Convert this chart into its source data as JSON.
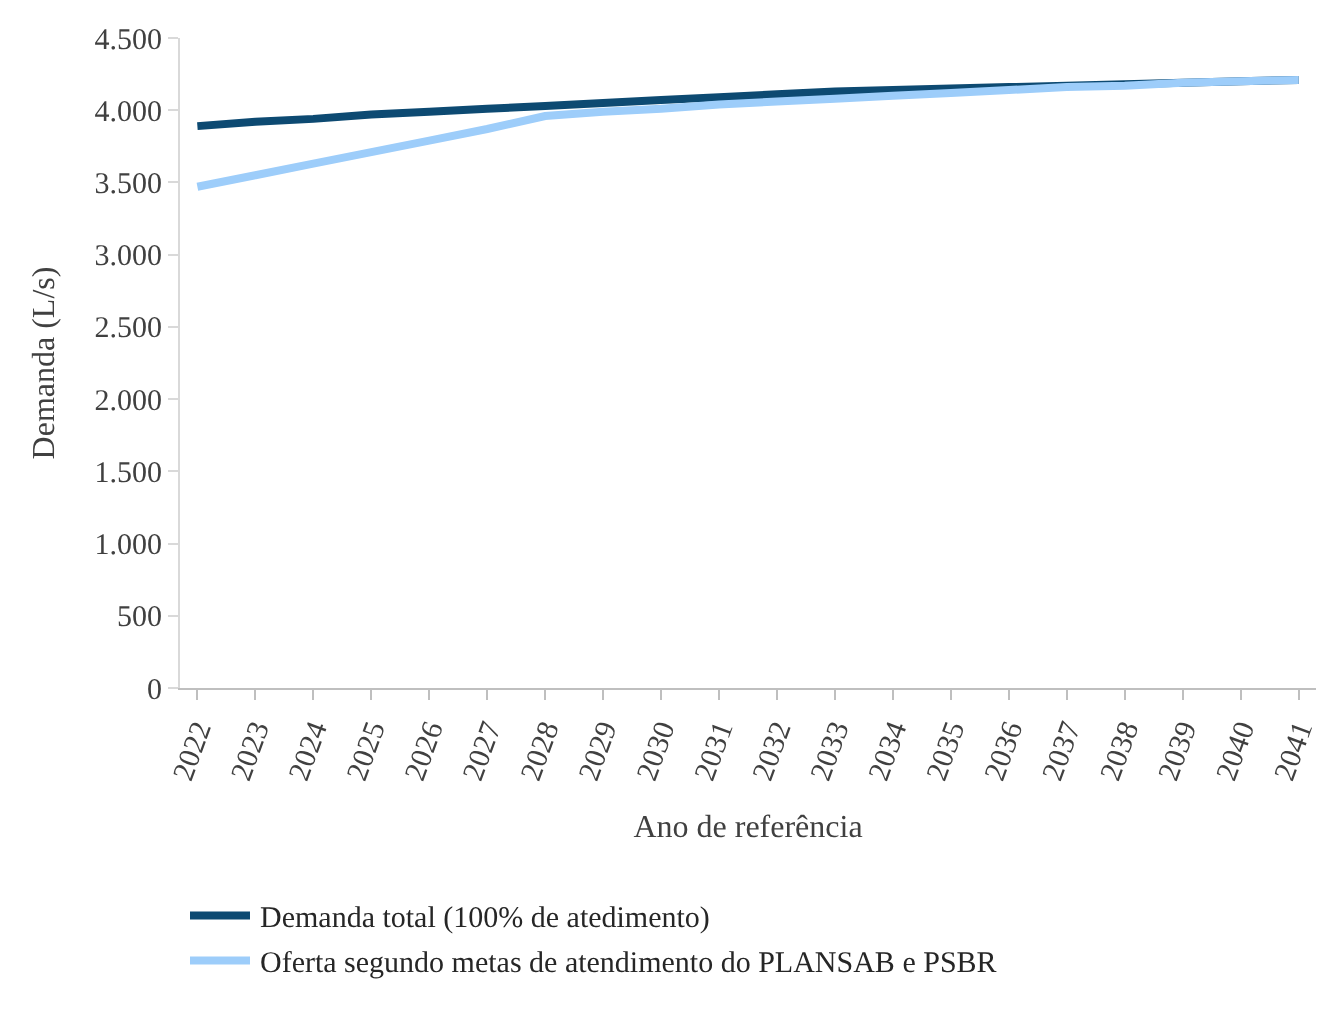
{
  "chart_data": {
    "type": "line",
    "xlabel": "Ano de referência",
    "ylabel": "Demanda (L/s)",
    "categories": [
      "2022",
      "2023",
      "2024",
      "2025",
      "2026",
      "2027",
      "2028",
      "2029",
      "2030",
      "2031",
      "2032",
      "2033",
      "2034",
      "2035",
      "2036",
      "2037",
      "2038",
      "2039",
      "2040",
      "2041"
    ],
    "series": [
      {
        "name": "Demanda total (100% de atedimento)",
        "color": "#0d4a72",
        "values": [
          3890,
          3920,
          3940,
          3970,
          3990,
          4010,
          4030,
          4050,
          4070,
          4090,
          4110,
          4130,
          4140,
          4150,
          4160,
          4170,
          4180,
          4190,
          4200,
          4210
        ]
      },
      {
        "name": "Oferta segundo metas de atendimento do PLANSAB e PSBR",
        "color": "#9dcdfa",
        "values": [
          3470,
          3550,
          3630,
          3710,
          3790,
          3870,
          3960,
          3990,
          4010,
          4040,
          4060,
          4080,
          4100,
          4120,
          4140,
          4160,
          4170,
          4190,
          4200,
          4210
        ]
      }
    ],
    "ylim": [
      0,
      4500
    ],
    "yticks": [
      0,
      500,
      {
        "value": 1000,
        "label": "1.000"
      },
      {
        "value": 1500,
        "label": "1.500"
      },
      {
        "value": 2000,
        "label": "2.000"
      },
      {
        "value": 2500,
        "label": "2.500"
      },
      {
        "value": 3000,
        "label": "3.000"
      },
      {
        "value": 3500,
        "label": "3.500"
      },
      {
        "value": 4000,
        "label": "4.000"
      },
      {
        "value": 4500,
        "label": "4.500"
      }
    ],
    "legend": "bottom",
    "marker": "none",
    "line_style": "solid"
  }
}
